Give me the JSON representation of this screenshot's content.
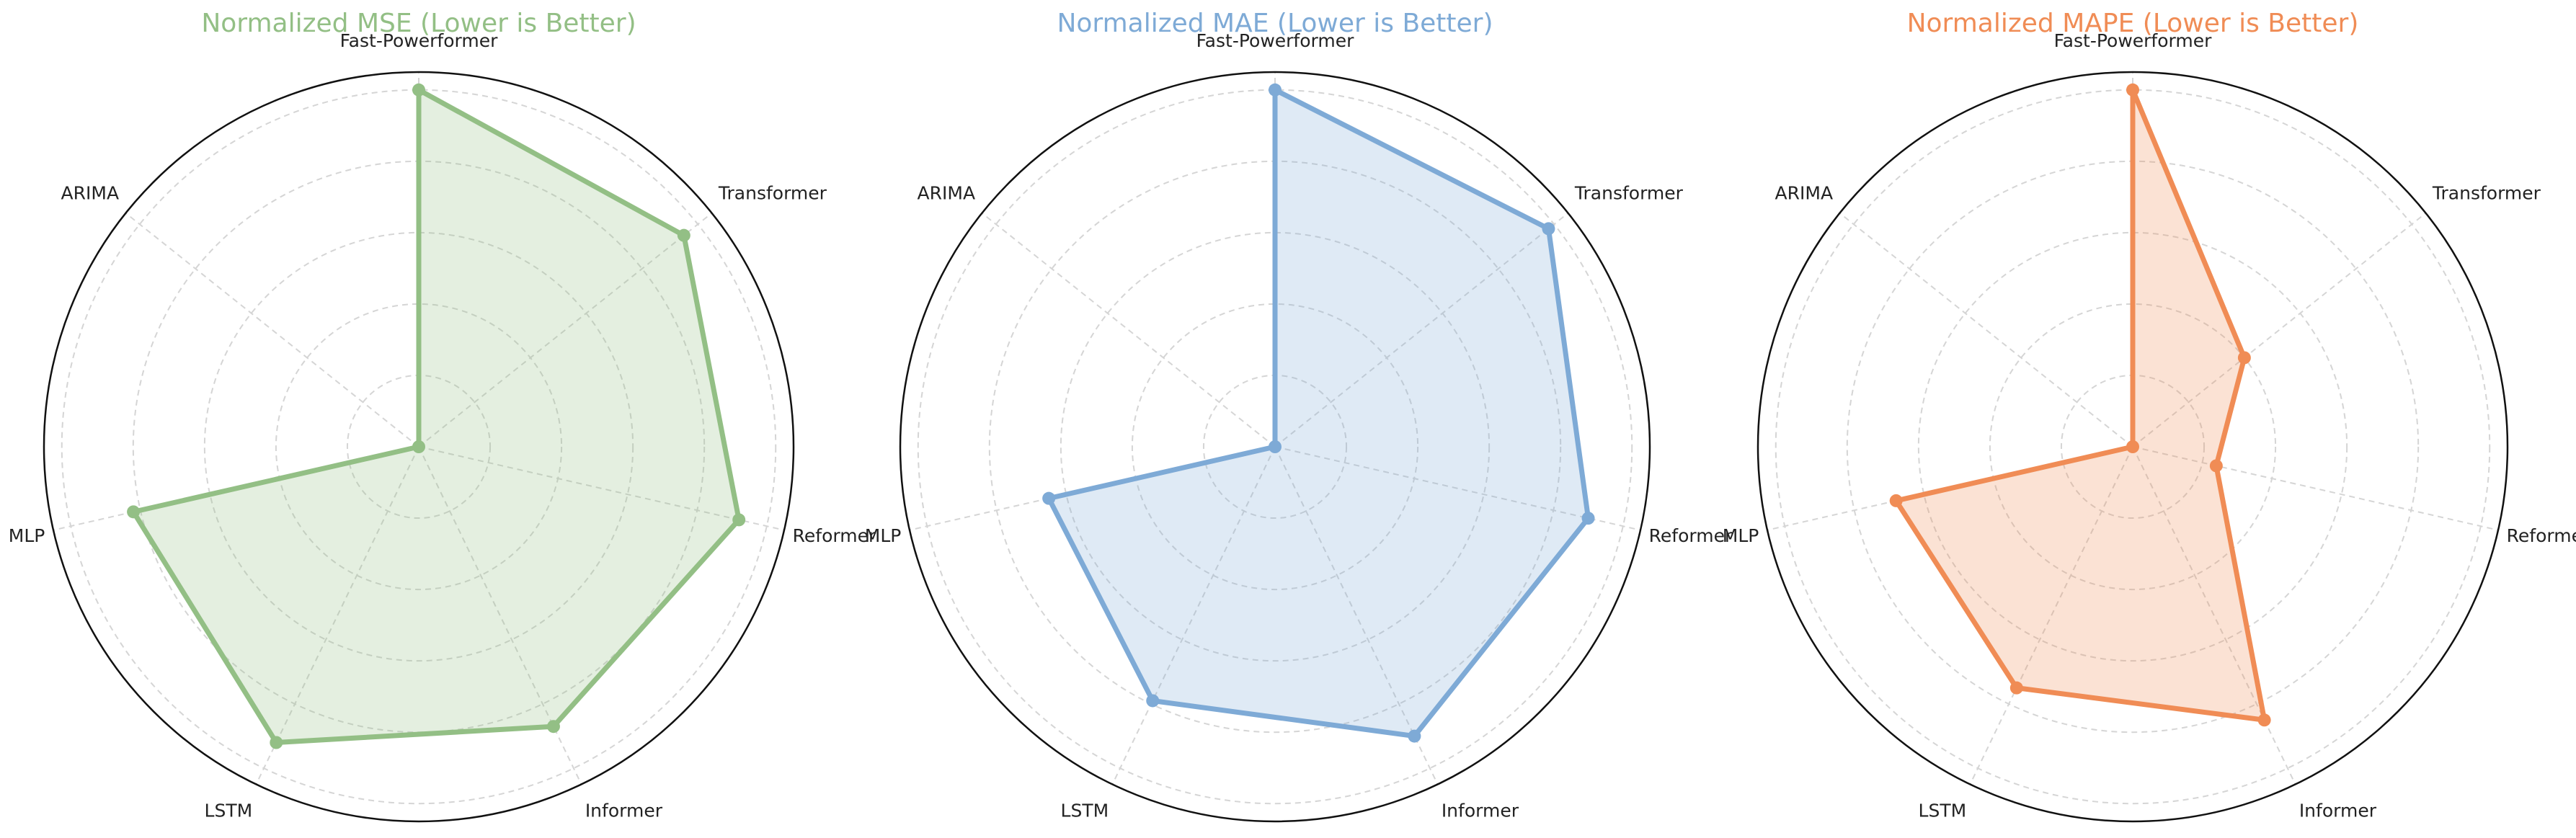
{
  "chart_data": [
    {
      "type": "radar",
      "title": "Normalized MSE (Lower is Better)",
      "title_color": "#93bf85",
      "categories": [
        "Fast-Powerformer",
        "Transformer",
        "Reformer",
        "Informer",
        "LSTM",
        "MLP",
        "ARIMA"
      ],
      "values": [
        1.0,
        0.95,
        0.92,
        0.87,
        0.92,
        0.82,
        0.0
      ],
      "color": "#93bf85",
      "rlim": [
        0,
        1.05
      ],
      "rticks": [
        0.2,
        0.4,
        0.6,
        0.8,
        1.0
      ],
      "grid": true
    },
    {
      "type": "radar",
      "title": "Normalized MAE (Lower is Better)",
      "title_color": "#7eaad6",
      "categories": [
        "Fast-Powerformer",
        "Transformer",
        "Reformer",
        "Informer",
        "LSTM",
        "MLP",
        "ARIMA"
      ],
      "values": [
        1.0,
        0.98,
        0.9,
        0.9,
        0.79,
        0.65,
        0.0
      ],
      "color": "#7eaad6",
      "rlim": [
        0,
        1.05
      ],
      "rticks": [
        0.2,
        0.4,
        0.6,
        0.8,
        1.0
      ],
      "grid": true
    },
    {
      "type": "radar",
      "title": "Normalized MAPE (Lower is Better)",
      "title_color": "#f08c55",
      "categories": [
        "Fast-Powerformer",
        "Transformer",
        "Reformer",
        "Informer",
        "LSTM",
        "MLP",
        "ARIMA"
      ],
      "values": [
        1.0,
        0.4,
        0.24,
        0.85,
        0.75,
        0.68,
        0.0
      ],
      "color": "#f08c55",
      "rlim": [
        0,
        1.05
      ],
      "rticks": [
        0.2,
        0.4,
        0.6,
        0.8,
        1.0
      ],
      "grid": true
    }
  ]
}
